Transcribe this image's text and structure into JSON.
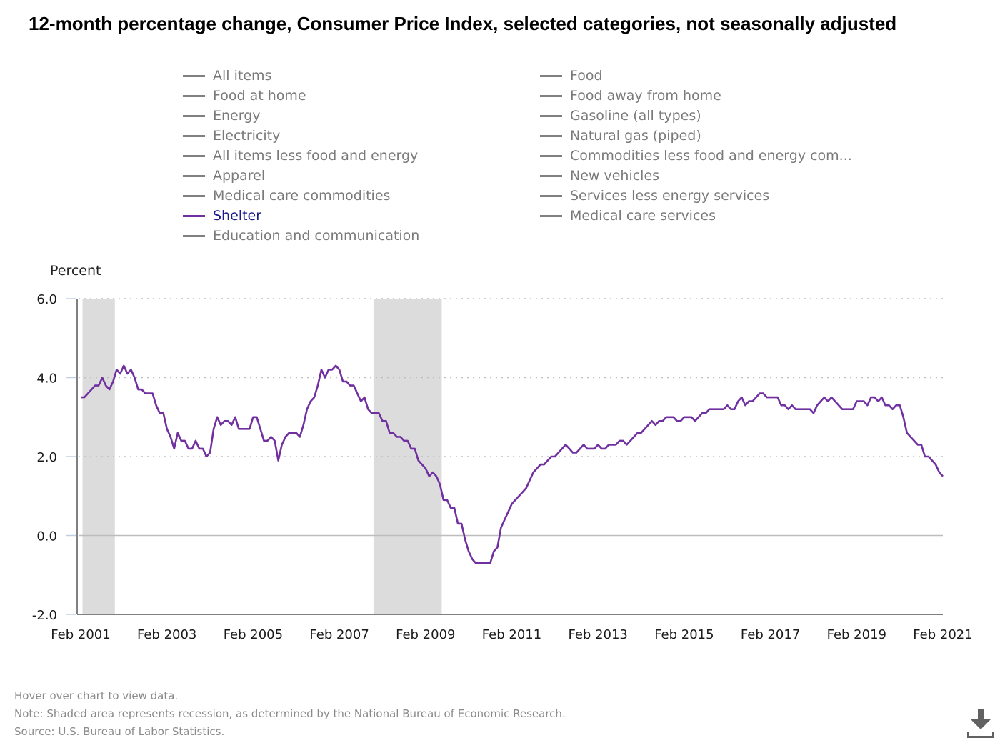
{
  "title": "12-month percentage change, Consumer Price Index, selected categories, not seasonally adjusted",
  "legend": {
    "left": [
      {
        "label": "All items",
        "active": false
      },
      {
        "label": "Food at home",
        "active": false
      },
      {
        "label": "Energy",
        "active": false
      },
      {
        "label": "Electricity",
        "active": false
      },
      {
        "label": "All items less food and energy",
        "active": false
      },
      {
        "label": "Apparel",
        "active": false
      },
      {
        "label": "Medical care commodities",
        "active": false
      },
      {
        "label": "Shelter",
        "active": true
      },
      {
        "label": "Education and communication",
        "active": false
      }
    ],
    "right": [
      {
        "label": "Food",
        "active": false
      },
      {
        "label": "Food away from home",
        "active": false
      },
      {
        "label": "Gasoline (all types)",
        "active": false
      },
      {
        "label": "Natural gas (piped)",
        "active": false
      },
      {
        "label": "Commodities less food and energy com...",
        "active": false
      },
      {
        "label": "New vehicles",
        "active": false
      },
      {
        "label": "Services less energy services",
        "active": false
      },
      {
        "label": "Medical care services",
        "active": false
      }
    ]
  },
  "colors": {
    "series": "#7030a0",
    "inactive_legend": "#808080",
    "active_legend_text": "#1a1a8a",
    "recession": "#dcdcdc",
    "grid": "#bdbdbd",
    "axis": "#808080"
  },
  "footer": {
    "hover_note": "Hover over chart to view data.",
    "recession_note": "Note: Shaded area represents recession, as determined by the National Bureau of Economic Research.",
    "source": "Source: U.S. Bureau of Labor Statistics."
  },
  "download_icon": "download-icon",
  "chart_data": {
    "type": "line",
    "title": "12-month percentage change, Consumer Price Index, selected categories, not seasonally adjusted",
    "ylabel": "Percent",
    "xlabel": "",
    "ylim": [
      -2.0,
      6.0
    ],
    "yticks": [
      6.0,
      4.0,
      2.0,
      0.0,
      -2.0
    ],
    "ytick_labels": [
      "6.0",
      "4.0",
      "2.0",
      "0.0",
      "-2.0"
    ],
    "x_start": "Feb 2001",
    "x_end": "Feb 2021",
    "x_frequency": "monthly",
    "xtick_labels": [
      "Feb 2001",
      "Feb 2003",
      "Feb 2005",
      "Feb 2007",
      "Feb 2009",
      "Feb 2011",
      "Feb 2013",
      "Feb 2015",
      "Feb 2017",
      "Feb 2019",
      "Feb 2021"
    ],
    "grid": true,
    "legend_position": "top",
    "recessions": [
      {
        "start": "Mar 2001",
        "end": "Nov 2001"
      },
      {
        "start": "Dec 2007",
        "end": "Jun 2009"
      }
    ],
    "series": [
      {
        "name": "Shelter",
        "values": [
          3.5,
          3.5,
          3.6,
          3.7,
          3.8,
          3.8,
          4.0,
          3.8,
          3.7,
          3.9,
          4.2,
          4.1,
          4.3,
          4.1,
          4.2,
          4.0,
          3.7,
          3.7,
          3.6,
          3.6,
          3.6,
          3.3,
          3.1,
          3.1,
          2.7,
          2.5,
          2.2,
          2.6,
          2.4,
          2.4,
          2.2,
          2.2,
          2.4,
          2.2,
          2.2,
          2.0,
          2.1,
          2.7,
          3.0,
          2.8,
          2.9,
          2.9,
          2.8,
          3.0,
          2.7,
          2.7,
          2.7,
          2.7,
          3.0,
          3.0,
          2.7,
          2.4,
          2.4,
          2.5,
          2.4,
          1.9,
          2.3,
          2.5,
          2.6,
          2.6,
          2.6,
          2.5,
          2.8,
          3.2,
          3.4,
          3.5,
          3.8,
          4.2,
          4.0,
          4.2,
          4.2,
          4.3,
          4.2,
          3.9,
          3.9,
          3.8,
          3.8,
          3.6,
          3.4,
          3.5,
          3.2,
          3.1,
          3.1,
          3.1,
          2.9,
          2.9,
          2.6,
          2.6,
          2.5,
          2.5,
          2.4,
          2.4,
          2.2,
          2.2,
          1.9,
          1.8,
          1.7,
          1.5,
          1.6,
          1.5,
          1.3,
          0.9,
          0.9,
          0.7,
          0.7,
          0.3,
          0.3,
          -0.1,
          -0.4,
          -0.6,
          -0.7,
          -0.7,
          -0.7,
          -0.7,
          -0.7,
          -0.4,
          -0.3,
          0.2,
          0.4,
          0.6,
          0.8,
          0.9,
          1.0,
          1.1,
          1.2,
          1.4,
          1.6,
          1.7,
          1.8,
          1.8,
          1.9,
          2.0,
          2.0,
          2.1,
          2.2,
          2.3,
          2.2,
          2.1,
          2.1,
          2.2,
          2.3,
          2.2,
          2.2,
          2.2,
          2.3,
          2.2,
          2.2,
          2.3,
          2.3,
          2.3,
          2.4,
          2.4,
          2.3,
          2.4,
          2.5,
          2.6,
          2.6,
          2.7,
          2.8,
          2.9,
          2.8,
          2.9,
          2.9,
          3.0,
          3.0,
          3.0,
          2.9,
          2.9,
          3.0,
          3.0,
          3.0,
          2.9,
          3.0,
          3.1,
          3.1,
          3.2,
          3.2,
          3.2,
          3.2,
          3.2,
          3.3,
          3.2,
          3.2,
          3.4,
          3.5,
          3.3,
          3.4,
          3.4,
          3.5,
          3.6,
          3.6,
          3.5,
          3.5,
          3.5,
          3.5,
          3.3,
          3.3,
          3.2,
          3.3,
          3.2,
          3.2,
          3.2,
          3.2,
          3.2,
          3.1,
          3.3,
          3.4,
          3.5,
          3.4,
          3.5,
          3.4,
          3.3,
          3.2,
          3.2,
          3.2,
          3.2,
          3.4,
          3.4,
          3.4,
          3.3,
          3.5,
          3.5,
          3.4,
          3.5,
          3.3,
          3.3,
          3.2,
          3.3,
          3.3,
          3.0,
          2.6,
          2.5,
          2.4,
          2.3,
          2.3,
          2.0,
          2.0,
          1.9,
          1.8,
          1.6,
          1.5
        ]
      }
    ]
  }
}
